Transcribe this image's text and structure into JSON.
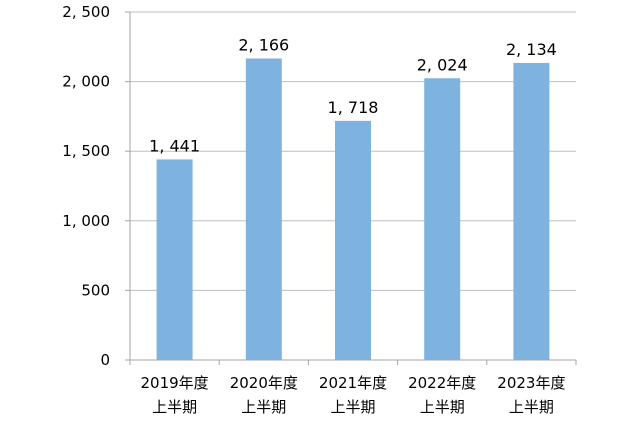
{
  "chart_data": {
    "type": "bar",
    "categories": [
      [
        "2019年度",
        "上半期"
      ],
      [
        "2020年度",
        "上半期"
      ],
      [
        "2021年度",
        "上半期"
      ],
      [
        "2022年度",
        "上半期"
      ],
      [
        "2023年度",
        "上半期"
      ]
    ],
    "values": [
      1441,
      2166,
      1718,
      2024,
      2134
    ],
    "value_labels": [
      "1, 441",
      "2, 166",
      "1, 718",
      "2, 024",
      "2, 134"
    ],
    "y_ticks": [
      0,
      500,
      1000,
      1500,
      2000,
      2500
    ],
    "y_tick_labels": [
      "0",
      "500",
      "1, 000",
      "1, 500",
      "2, 000",
      "2, 500"
    ],
    "ylim": [
      0,
      2500
    ],
    "grid": true,
    "legend": "none",
    "colors": {
      "bar": "#7EB3E0",
      "grid": "#BFBFBF",
      "axis": "#A6A6A6"
    }
  }
}
